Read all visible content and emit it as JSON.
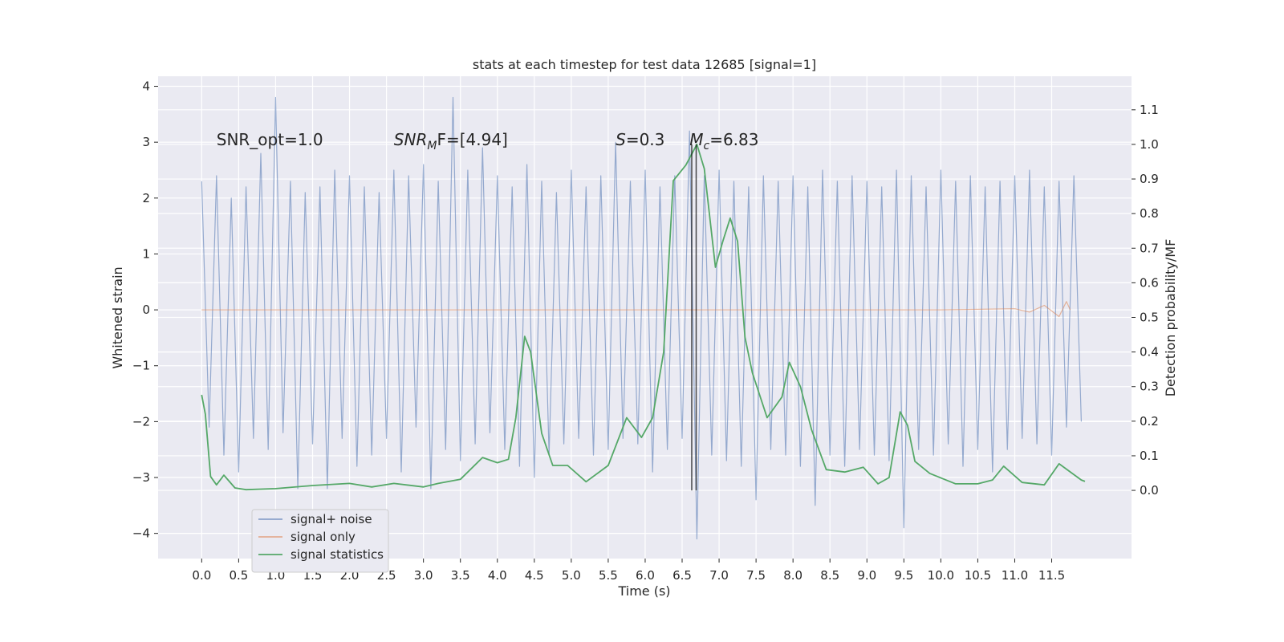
{
  "chart_data": {
    "type": "line",
    "title": "stats at each timestep for test data 12685 [signal=1]",
    "xlabel": "Time (s)",
    "ylabel": "Whitened strain",
    "y2label": "Detection probability/MF",
    "xlim": [
      -0.59,
      12.58
    ],
    "ylim": [
      -4.45,
      4.18
    ],
    "y2lim": [
      -0.197,
      1.197
    ],
    "xticks": [
      {
        "value": 0,
        "label": "0.0"
      },
      {
        "value": 0.5,
        "label": "0.5"
      },
      {
        "value": 1,
        "label": "1.0"
      },
      {
        "value": 1.5,
        "label": "1.5"
      },
      {
        "value": 2,
        "label": "2.0"
      },
      {
        "value": 2.5,
        "label": "2.5"
      },
      {
        "value": 3,
        "label": "3.0"
      },
      {
        "value": 3.5,
        "label": "3.5"
      },
      {
        "value": 4,
        "label": "4.0"
      },
      {
        "value": 4.5,
        "label": "4.5"
      },
      {
        "value": 5,
        "label": "5.0"
      },
      {
        "value": 5.5,
        "label": "5.5"
      },
      {
        "value": 6,
        "label": "6.0"
      },
      {
        "value": 6.5,
        "label": "6.5"
      },
      {
        "value": 7,
        "label": "7.0"
      },
      {
        "value": 7.5,
        "label": "7.5"
      },
      {
        "value": 8,
        "label": "8.0"
      },
      {
        "value": 8.5,
        "label": "8.5"
      },
      {
        "value": 9,
        "label": "9.0"
      },
      {
        "value": 9.5,
        "label": "9.5"
      },
      {
        "value": 10,
        "label": "10.0"
      },
      {
        "value": 10.5,
        "label": "10.5"
      },
      {
        "value": 11,
        "label": "11.0"
      },
      {
        "value": 11.5,
        "label": "11.5"
      }
    ],
    "yticks": [
      {
        "value": -4,
        "label": "−4"
      },
      {
        "value": -3,
        "label": "−3"
      },
      {
        "value": -2,
        "label": "−2"
      },
      {
        "value": -1,
        "label": "−1"
      },
      0,
      1,
      2,
      3,
      4
    ],
    "y2ticks": [
      {
        "value": 0,
        "label": "0.0"
      },
      0.1,
      0.2,
      0.3,
      0.4,
      0.5,
      0.6,
      0.7,
      0.8,
      0.9,
      {
        "value": 1,
        "label": "1.0"
      },
      1.1
    ],
    "grid": true,
    "series": [
      {
        "name": "signal+ noise",
        "color": "#4c72b0",
        "x": [
          0,
          0.1,
          0.2,
          0.3,
          0.4,
          0.5,
          0.6,
          0.7,
          0.8,
          0.9,
          1,
          1.1,
          1.2,
          1.3,
          1.4,
          1.5,
          1.6,
          1.7,
          1.8,
          1.9,
          2,
          2.1,
          2.2,
          2.3,
          2.4,
          2.5,
          2.6,
          2.7,
          2.8,
          2.9,
          3,
          3.1,
          3.2,
          3.3,
          3.4,
          3.5,
          3.6,
          3.7,
          3.8,
          3.9,
          4,
          4.1,
          4.2,
          4.3,
          4.4,
          4.5,
          4.6,
          4.7,
          4.8,
          4.9,
          5,
          5.1,
          5.2,
          5.3,
          5.4,
          5.5,
          5.6,
          5.7,
          5.8,
          5.9,
          6,
          6.1,
          6.2,
          6.3,
          6.4,
          6.5,
          6.6,
          6.7,
          6.8,
          6.9,
          7,
          7.1,
          7.2,
          7.3,
          7.4,
          7.5,
          7.6,
          7.7,
          7.8,
          7.9,
          8,
          8.1,
          8.2,
          8.3,
          8.4,
          8.5,
          8.6,
          8.7,
          8.8,
          8.9,
          9,
          9.1,
          9.2,
          9.3,
          9.4,
          9.5,
          9.6,
          9.7,
          9.8,
          9.9,
          10,
          10.1,
          10.2,
          10.3,
          10.4,
          10.5,
          10.6,
          10.7,
          10.8,
          10.9,
          11,
          11.1,
          11.2,
          11.3,
          11.4,
          11.5,
          11.6,
          11.7,
          11.8,
          11.9
        ],
        "values": [
          2.3,
          -2.1,
          2.4,
          -2.6,
          2.0,
          -2.9,
          2.2,
          -2.3,
          2.8,
          -2.5,
          3.8,
          -2.2,
          2.3,
          -3.2,
          2.1,
          -2.4,
          2.2,
          -3.2,
          2.5,
          -2.3,
          2.4,
          -2.8,
          2.2,
          -2.6,
          2.1,
          -2.3,
          2.5,
          -2.9,
          2.4,
          -2.1,
          2.6,
          -3.2,
          2.3,
          -2.5,
          3.8,
          -2.7,
          2.5,
          -2.4,
          2.9,
          -2.2,
          2.4,
          -2.5,
          2.2,
          -2.8,
          2.6,
          -3.0,
          2.3,
          -2.6,
          2.1,
          -2.4,
          2.5,
          -2.3,
          2.2,
          -2.6,
          2.4,
          -2.5,
          3.0,
          -2.3,
          2.3,
          -2.4,
          2.5,
          -2.9,
          2.2,
          -2.5,
          2.4,
          -2.3,
          3.2,
          -4.1,
          2.4,
          -2.6,
          2.5,
          -2.7,
          2.3,
          -2.8,
          2.2,
          -3.4,
          2.4,
          -2.5,
          2.3,
          -2.6,
          2.4,
          -2.8,
          2.2,
          -3.5,
          2.5,
          -2.6,
          2.3,
          -2.8,
          2.4,
          -2.5,
          2.3,
          -2.6,
          2.2,
          -2.7,
          2.5,
          -3.9,
          2.4,
          -2.5,
          2.2,
          -2.6,
          2.5,
          -2.4,
          2.3,
          -2.8,
          2.4,
          -2.5,
          2.2,
          -2.9,
          2.3,
          -2.5,
          2.4,
          -2.3,
          2.5,
          -2.4,
          2.2,
          -2.6,
          2.3,
          -2.1,
          2.4,
          -2.0
        ]
      },
      {
        "name": "signal only",
        "color": "#dd8452",
        "x": [
          0,
          2,
          4,
          6,
          8,
          10,
          11,
          11.2,
          11.4,
          11.6,
          11.7,
          11.75
        ],
        "values": [
          0,
          0,
          0,
          0,
          0,
          0,
          0.02,
          -0.04,
          0.08,
          -0.12,
          0.15,
          0
        ]
      },
      {
        "name": "signal statistics",
        "color": "#55a868",
        "axis": "y2",
        "x": [
          0,
          0.05,
          0.12,
          0.2,
          0.3,
          0.45,
          0.6,
          1,
          1.5,
          2,
          2.3,
          2.6,
          3,
          3.2,
          3.5,
          3.8,
          4,
          4.15,
          4.25,
          4.37,
          4.45,
          4.6,
          4.75,
          4.95,
          5.2,
          5.5,
          5.75,
          5.95,
          6.1,
          6.25,
          6.38,
          6.55,
          6.7,
          6.8,
          6.95,
          7.05,
          7.15,
          7.25,
          7.35,
          7.45,
          7.65,
          7.85,
          7.95,
          8.1,
          8.25,
          8.45,
          8.7,
          8.95,
          9.15,
          9.3,
          9.45,
          9.55,
          9.65,
          9.85,
          10.2,
          10.5,
          10.7,
          10.85,
          11.1,
          11.4,
          11.6,
          11.9,
          11.95
        ],
        "values": [
          0.276,
          0.22,
          0.04,
          0.016,
          0.044,
          0.007,
          0.002,
          0.005,
          0.014,
          0.02,
          0.01,
          0.02,
          0.01,
          0.02,
          0.032,
          0.095,
          0.08,
          0.09,
          0.21,
          0.445,
          0.4,
          0.165,
          0.072,
          0.072,
          0.025,
          0.072,
          0.21,
          0.153,
          0.21,
          0.4,
          0.895,
          0.94,
          1.0,
          0.93,
          0.645,
          0.72,
          0.787,
          0.72,
          0.443,
          0.34,
          0.21,
          0.27,
          0.37,
          0.3,
          0.176,
          0.06,
          0.053,
          0.067,
          0.019,
          0.037,
          0.227,
          0.188,
          0.084,
          0.049,
          0.019,
          0.019,
          0.03,
          0.07,
          0.023,
          0.016,
          0.077,
          0.03,
          0.026
        ]
      }
    ],
    "vlines": [
      6.63,
      6.69
    ],
    "vline_range": [
      0,
      1
    ],
    "annotations": [
      {
        "x": 0.2,
        "y": 3,
        "parts": [
          {
            "text": "SNR_opt=1.0",
            "style": "normal"
          }
        ]
      },
      {
        "x": 2.6,
        "y": 3,
        "parts": [
          {
            "text": "SNR",
            "style": "italic"
          },
          {
            "text": "M",
            "style": "sub"
          },
          {
            "text": "F=[4.94]",
            "style": "normal"
          }
        ]
      },
      {
        "x": 5.6,
        "y": 3,
        "parts": [
          {
            "text": "S",
            "style": "italic"
          },
          {
            "text": "=0.3",
            "style": "normal"
          }
        ]
      },
      {
        "x": 6.6,
        "y": 3,
        "parts": [
          {
            "text": "M",
            "style": "italic"
          },
          {
            "text": "c",
            "style": "sub"
          },
          {
            "text": "=6.83",
            "style": "normal"
          }
        ]
      }
    ],
    "legend": "lower left"
  }
}
